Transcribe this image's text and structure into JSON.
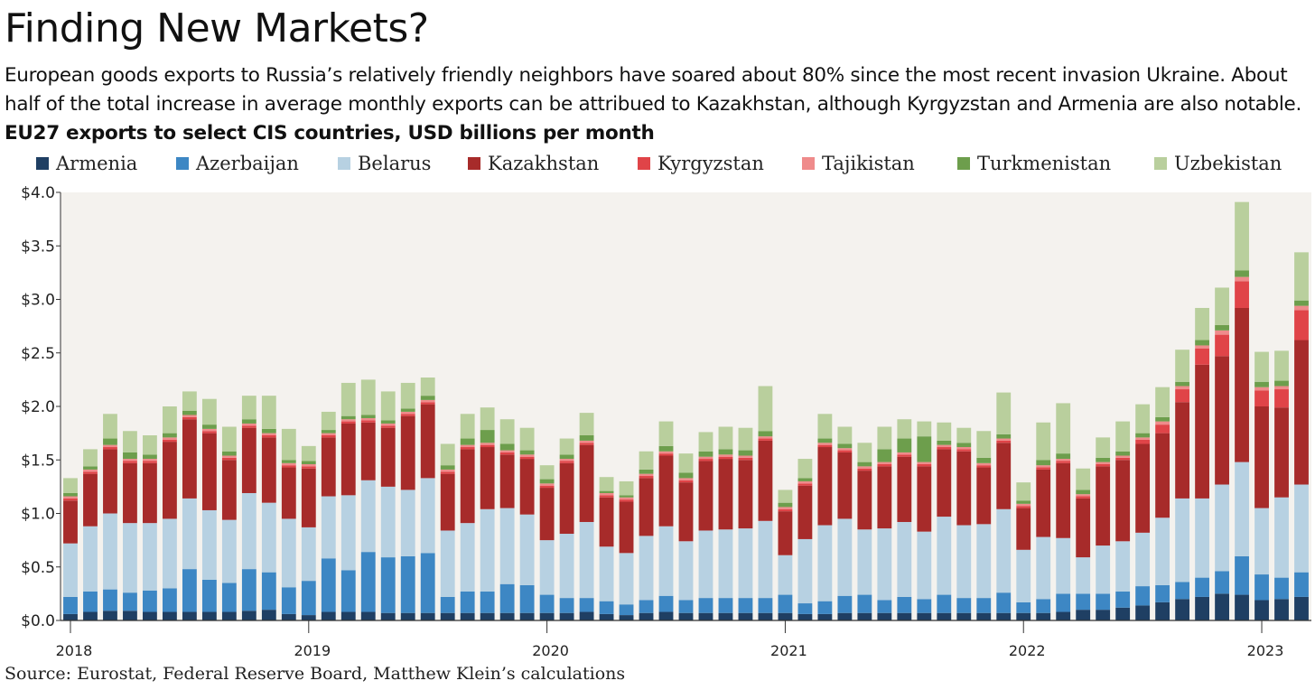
{
  "header": {
    "title": "Finding New Markets?",
    "subtitle": "European goods exports to Russia’s relatively friendly neighbors have soared about 80% since the most recent invasion Ukraine. About half of the total increase in average monthly exports can be attribued to Kazakhstan, although Kyrgyzstan and Armenia are also notable.",
    "chart_heading": "EU27 exports to select CIS countries, USD billions per month"
  },
  "footer": {
    "source": "Source: Eurostat, Federal Reserve Board, Matthew Klein’s calculations"
  },
  "colors": {
    "plot_background": "#f4f2ee",
    "axis": "#333333",
    "Armenia": "#1f3f63",
    "Azerbaijan": "#3d87c4",
    "Belarus": "#b7d1e2",
    "Kazakhstan": "#a72b2a",
    "Kyrgyzstan": "#e04448",
    "Tajikistan": "#ef8b8b",
    "Turkmenistan": "#6d9e4c",
    "Uzbekistan": "#b9cf9d"
  },
  "legend": [
    {
      "label": "Armenia",
      "color": "#1f3f63"
    },
    {
      "label": "Azerbaijan",
      "color": "#3d87c4"
    },
    {
      "label": "Belarus",
      "color": "#b7d1e2"
    },
    {
      "label": "Kazakhstan",
      "color": "#a72b2a"
    },
    {
      "label": "Kyrgyzstan",
      "color": "#e04448"
    },
    {
      "label": "Tajikistan",
      "color": "#ef8b8b"
    },
    {
      "label": "Turkmenistan",
      "color": "#6d9e4c"
    },
    {
      "label": "Uzbekistan",
      "color": "#b9cf9d"
    }
  ],
  "chart_data": {
    "type": "bar",
    "stacked": true,
    "grid": false,
    "legend_position": "top",
    "ylim": [
      0,
      4.0
    ],
    "y_ticks": [
      {
        "value": 0.0,
        "label": "$0.0"
      },
      {
        "value": 0.5,
        "label": "$0.5"
      },
      {
        "value": 1.0,
        "label": "$1.0"
      },
      {
        "value": 1.5,
        "label": "$1.5"
      },
      {
        "value": 2.0,
        "label": "$2.0"
      },
      {
        "value": 2.5,
        "label": "$2.5"
      },
      {
        "value": 3.0,
        "label": "$3.0"
      },
      {
        "value": 3.5,
        "label": "$3.5"
      },
      {
        "value": 4.0,
        "label": "$4.0"
      }
    ],
    "x_tick_labels": [
      "2018",
      "2019",
      "2020",
      "2021",
      "2022",
      "2023"
    ],
    "categories": [
      "2018-01",
      "2018-02",
      "2018-03",
      "2018-04",
      "2018-05",
      "2018-06",
      "2018-07",
      "2018-08",
      "2018-09",
      "2018-10",
      "2018-11",
      "2018-12",
      "2019-01",
      "2019-02",
      "2019-03",
      "2019-04",
      "2019-05",
      "2019-06",
      "2019-07",
      "2019-08",
      "2019-09",
      "2019-10",
      "2019-11",
      "2019-12",
      "2020-01",
      "2020-02",
      "2020-03",
      "2020-04",
      "2020-05",
      "2020-06",
      "2020-07",
      "2020-08",
      "2020-09",
      "2020-10",
      "2020-11",
      "2020-12",
      "2021-01",
      "2021-02",
      "2021-03",
      "2021-04",
      "2021-05",
      "2021-06",
      "2021-07",
      "2021-08",
      "2021-09",
      "2021-10",
      "2021-11",
      "2021-12",
      "2022-01",
      "2022-02",
      "2022-03",
      "2022-04",
      "2022-05",
      "2022-06",
      "2022-07",
      "2022-08",
      "2022-09",
      "2022-10",
      "2022-11",
      "2022-12",
      "2023-01",
      "2023-02",
      "2023-03"
    ],
    "series": [
      {
        "name": "Armenia",
        "values": [
          0.06,
          0.08,
          0.09,
          0.09,
          0.08,
          0.08,
          0.08,
          0.08,
          0.08,
          0.09,
          0.1,
          0.06,
          0.05,
          0.08,
          0.08,
          0.08,
          0.07,
          0.07,
          0.07,
          0.07,
          0.07,
          0.07,
          0.07,
          0.07,
          0.07,
          0.07,
          0.08,
          0.06,
          0.05,
          0.07,
          0.08,
          0.07,
          0.07,
          0.07,
          0.07,
          0.07,
          0.07,
          0.06,
          0.06,
          0.07,
          0.07,
          0.07,
          0.07,
          0.07,
          0.07,
          0.07,
          0.07,
          0.07,
          0.07,
          0.07,
          0.08,
          0.1,
          0.1,
          0.12,
          0.14,
          0.17,
          0.2,
          0.22,
          0.25,
          0.24,
          0.19,
          0.2,
          0.22
        ]
      },
      {
        "name": "Azerbaijan",
        "values": [
          0.16,
          0.19,
          0.2,
          0.17,
          0.2,
          0.22,
          0.4,
          0.3,
          0.27,
          0.39,
          0.35,
          0.25,
          0.32,
          0.5,
          0.39,
          0.56,
          0.52,
          0.53,
          0.56,
          0.15,
          0.2,
          0.2,
          0.27,
          0.26,
          0.17,
          0.14,
          0.13,
          0.12,
          0.1,
          0.12,
          0.15,
          0.12,
          0.14,
          0.14,
          0.14,
          0.14,
          0.17,
          0.1,
          0.12,
          0.16,
          0.17,
          0.12,
          0.15,
          0.13,
          0.17,
          0.14,
          0.14,
          0.19,
          0.1,
          0.13,
          0.17,
          0.15,
          0.15,
          0.15,
          0.18,
          0.16,
          0.16,
          0.18,
          0.21,
          0.36,
          0.24,
          0.2,
          0.23
        ]
      },
      {
        "name": "Belarus",
        "values": [
          0.5,
          0.61,
          0.71,
          0.65,
          0.63,
          0.65,
          0.66,
          0.65,
          0.59,
          0.71,
          0.65,
          0.64,
          0.5,
          0.58,
          0.7,
          0.67,
          0.66,
          0.62,
          0.7,
          0.62,
          0.64,
          0.77,
          0.71,
          0.66,
          0.51,
          0.6,
          0.71,
          0.51,
          0.48,
          0.6,
          0.65,
          0.55,
          0.63,
          0.64,
          0.65,
          0.72,
          0.37,
          0.6,
          0.71,
          0.72,
          0.61,
          0.67,
          0.7,
          0.63,
          0.73,
          0.68,
          0.69,
          0.78,
          0.49,
          0.58,
          0.52,
          0.34,
          0.45,
          0.47,
          0.5,
          0.63,
          0.78,
          0.74,
          0.81,
          0.88,
          0.62,
          0.75,
          0.82
        ]
      },
      {
        "name": "Kazakhstan",
        "values": [
          0.4,
          0.49,
          0.6,
          0.56,
          0.56,
          0.72,
          0.74,
          0.72,
          0.56,
          0.61,
          0.61,
          0.48,
          0.55,
          0.55,
          0.67,
          0.54,
          0.55,
          0.69,
          0.69,
          0.53,
          0.69,
          0.58,
          0.5,
          0.52,
          0.49,
          0.66,
          0.72,
          0.46,
          0.48,
          0.54,
          0.66,
          0.55,
          0.65,
          0.66,
          0.64,
          0.75,
          0.41,
          0.5,
          0.73,
          0.62,
          0.55,
          0.58,
          0.61,
          0.61,
          0.63,
          0.69,
          0.53,
          0.62,
          0.39,
          0.63,
          0.7,
          0.55,
          0.74,
          0.76,
          0.83,
          0.79,
          0.9,
          1.25,
          1.2,
          1.44,
          0.95,
          0.84,
          1.35
        ]
      },
      {
        "name": "Kyrgyzstan",
        "values": [
          0.02,
          0.02,
          0.02,
          0.02,
          0.02,
          0.02,
          0.02,
          0.02,
          0.02,
          0.02,
          0.02,
          0.02,
          0.02,
          0.02,
          0.02,
          0.02,
          0.02,
          0.02,
          0.02,
          0.02,
          0.02,
          0.02,
          0.02,
          0.02,
          0.02,
          0.02,
          0.02,
          0.02,
          0.02,
          0.02,
          0.02,
          0.02,
          0.02,
          0.02,
          0.02,
          0.02,
          0.02,
          0.02,
          0.02,
          0.02,
          0.02,
          0.02,
          0.02,
          0.02,
          0.02,
          0.02,
          0.02,
          0.02,
          0.02,
          0.02,
          0.02,
          0.02,
          0.02,
          0.02,
          0.04,
          0.08,
          0.12,
          0.15,
          0.2,
          0.25,
          0.15,
          0.17,
          0.28
        ]
      },
      {
        "name": "Tajikistan",
        "values": [
          0.02,
          0.02,
          0.02,
          0.02,
          0.02,
          0.02,
          0.02,
          0.02,
          0.02,
          0.02,
          0.02,
          0.02,
          0.02,
          0.02,
          0.02,
          0.02,
          0.02,
          0.02,
          0.02,
          0.02,
          0.02,
          0.02,
          0.02,
          0.02,
          0.02,
          0.02,
          0.02,
          0.02,
          0.02,
          0.02,
          0.02,
          0.02,
          0.02,
          0.02,
          0.02,
          0.02,
          0.02,
          0.02,
          0.02,
          0.02,
          0.02,
          0.02,
          0.02,
          0.02,
          0.02,
          0.02,
          0.02,
          0.02,
          0.02,
          0.02,
          0.02,
          0.02,
          0.02,
          0.02,
          0.02,
          0.03,
          0.03,
          0.03,
          0.04,
          0.04,
          0.03,
          0.03,
          0.04
        ]
      },
      {
        "name": "Turkmenistan",
        "values": [
          0.03,
          0.03,
          0.06,
          0.06,
          0.04,
          0.04,
          0.04,
          0.04,
          0.04,
          0.04,
          0.04,
          0.03,
          0.03,
          0.03,
          0.03,
          0.03,
          0.03,
          0.03,
          0.04,
          0.04,
          0.06,
          0.12,
          0.06,
          0.04,
          0.04,
          0.04,
          0.05,
          0.02,
          0.02,
          0.04,
          0.05,
          0.05,
          0.05,
          0.05,
          0.05,
          0.05,
          0.04,
          0.03,
          0.04,
          0.04,
          0.04,
          0.12,
          0.13,
          0.24,
          0.04,
          0.04,
          0.05,
          0.04,
          0.03,
          0.05,
          0.05,
          0.04,
          0.04,
          0.04,
          0.04,
          0.04,
          0.04,
          0.05,
          0.05,
          0.06,
          0.05,
          0.05,
          0.05
        ]
      },
      {
        "name": "Uzbekistan",
        "values": [
          0.14,
          0.16,
          0.23,
          0.2,
          0.18,
          0.25,
          0.18,
          0.24,
          0.23,
          0.22,
          0.31,
          0.29,
          0.14,
          0.17,
          0.31,
          0.33,
          0.27,
          0.24,
          0.17,
          0.2,
          0.23,
          0.21,
          0.23,
          0.21,
          0.13,
          0.15,
          0.21,
          0.13,
          0.13,
          0.17,
          0.23,
          0.18,
          0.18,
          0.21,
          0.21,
          0.42,
          0.12,
          0.18,
          0.23,
          0.16,
          0.18,
          0.21,
          0.18,
          0.14,
          0.17,
          0.14,
          0.25,
          0.39,
          0.17,
          0.35,
          0.47,
          0.2,
          0.19,
          0.28,
          0.27,
          0.28,
          0.3,
          0.3,
          0.35,
          0.64,
          0.28,
          0.28,
          0.45
        ]
      }
    ]
  }
}
